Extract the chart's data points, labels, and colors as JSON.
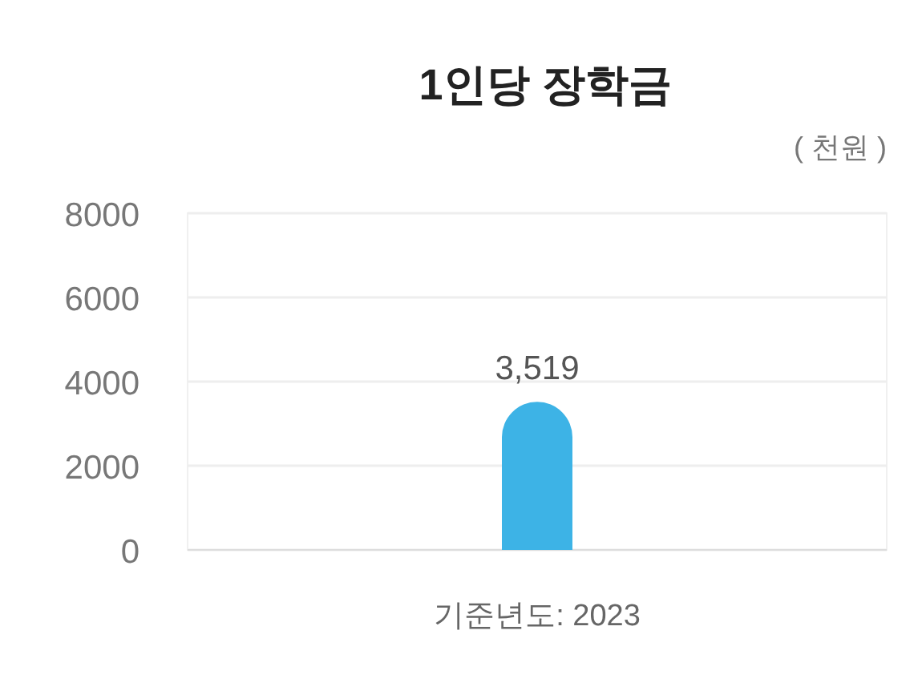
{
  "chart_data": {
    "type": "bar",
    "title": "1인당 장학금",
    "annotations": [
      "( 천원 )"
    ],
    "categories": [
      "기준년도: 2023"
    ],
    "values": [
      3519
    ],
    "value_labels": [
      "3,519"
    ],
    "color": "#3db3e6",
    "ylim": [
      0,
      8000
    ],
    "yticks": [
      0,
      2000,
      4000,
      6000,
      8000
    ],
    "grid": "y"
  }
}
